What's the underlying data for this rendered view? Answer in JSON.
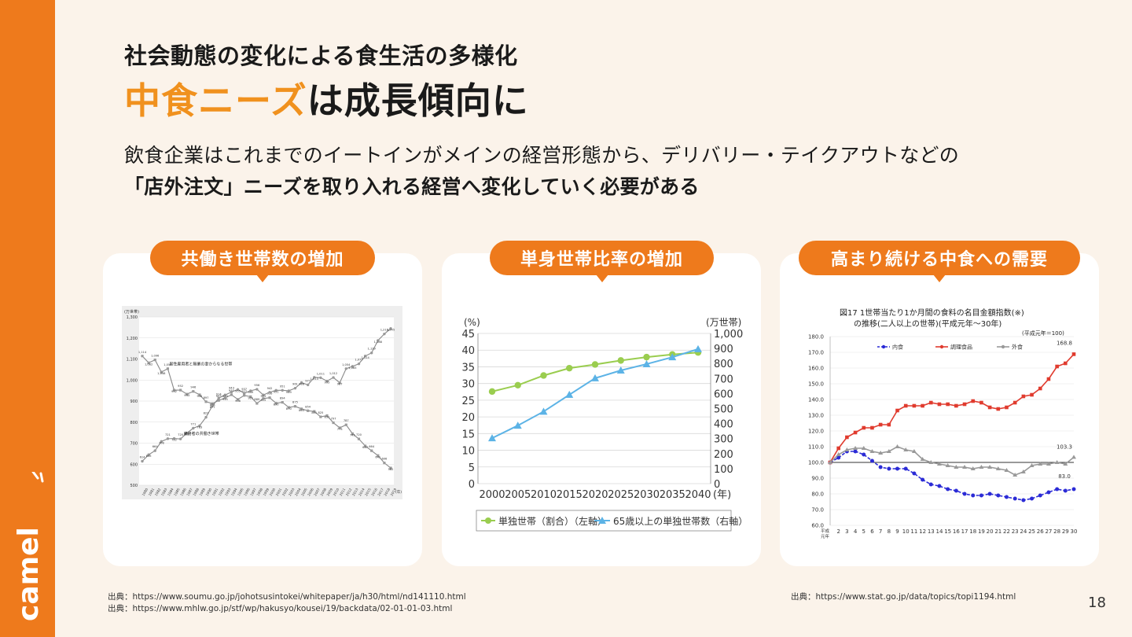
{
  "brand": {
    "name": "camel",
    "color": "#ee7a1c",
    "accent": "#f0911e"
  },
  "heading": "社会動態の変化による食生活の多様化",
  "title": {
    "accent": "中食ニーズ",
    "rest": "は成長傾向に"
  },
  "description": {
    "line1": "飲食企業はこれまでのイートインがメインの経営形態から、デリバリー・テイクアウトなどの",
    "line2": "「店外注文」ニーズを取り入れる経営へ変化していく必要がある"
  },
  "cards": [
    {
      "label": "共働き世帯数の増加"
    },
    {
      "label": "単身世帯比率の増加"
    },
    {
      "label": "高まり続ける中食への需要"
    }
  ],
  "sources": {
    "left1": "出典：https://www.soumu.go.jp/johotsusintokei/whitepaper/ja/h30/html/nd141110.html",
    "left2": "出典：https://www.mhlw.go.jp/stf/wp/hakusyo/kousei/19/backdata/02-01-01-03.html",
    "right": "出典：https://www.stat.go.jp/data/topics/topi1194.html"
  },
  "page_number": "18",
  "chart_data": [
    {
      "type": "line",
      "ylabel": "(万世帯)",
      "ylim": [
        500,
        1300
      ],
      "yticks": [
        "500",
        "600",
        "700",
        "800",
        "900",
        "1,000",
        "1,100",
        "1,200",
        "1,300"
      ],
      "x": [
        "1980",
        "1981",
        "1982",
        "1983",
        "1984",
        "1985",
        "1986",
        "1987",
        "1988",
        "1989",
        "1990",
        "1991",
        "1992",
        "1993",
        "1994",
        "1995",
        "1996",
        "1997",
        "1998",
        "1999",
        "2000",
        "2001",
        "2002",
        "2003",
        "2004",
        "2005",
        "2006",
        "2007",
        "2008",
        "2009",
        "2010",
        "2011",
        "2012",
        "2013",
        "2014",
        "2015",
        "2016",
        "2017",
        "2018",
        "2019"
      ],
      "x_unit": "(年)",
      "series": [
        {
          "name": "男性雇用者と無業の妻からなる世帯",
          "color": "#888888",
          "values": [
            1114,
            1082,
            1096,
            1038,
            1054,
            952,
            952,
            933,
            946,
            930,
            897,
            888,
            903,
            915,
            930,
            908,
            927,
            921,
            889,
            912,
            916,
            890,
            894,
            870,
            875,
            863,
            854,
            851,
            825,
            831,
            797,
            773,
            787,
            745,
            720,
            687,
            664,
            641,
            606,
            582
          ]
        },
        {
          "name": "雇用者の共働き世帯",
          "color": "#888888",
          "values": [
            614,
            645,
            664,
            708,
            721,
            722,
            720,
            748,
            771,
            783,
            823,
            877,
            914,
            929,
            943,
            955,
            937,
            949,
            956,
            929,
            942,
            951,
            951,
            949,
            961,
            988,
            977,
            1013,
            1011,
            995,
            1012,
            987,
            1054,
            1065,
            1077,
            1114,
            1129,
            1188,
            1219,
            1245
          ]
        }
      ]
    },
    {
      "type": "line",
      "ylabel_left": "(%)",
      "ylabel_right": "(万世帯)",
      "ylim_left": [
        0,
        45
      ],
      "ylim_right": [
        0,
        1000
      ],
      "yticks_left": [
        "0",
        "5",
        "10",
        "15",
        "20",
        "25",
        "30",
        "35",
        "40",
        "45"
      ],
      "yticks_right": [
        "0",
        "100",
        "200",
        "300",
        "400",
        "500",
        "600",
        "700",
        "800",
        "900",
        "1,000"
      ],
      "x": [
        "2000",
        "2005",
        "2010",
        "2015",
        "2020",
        "2025",
        "2030",
        "2035",
        "2040"
      ],
      "x_unit": "(年)",
      "series": [
        {
          "name": "単独世帯（割合）（左軸）",
          "color": "#9acd4f",
          "axis": "left",
          "values": [
            27.6,
            29.5,
            32.4,
            34.6,
            35.7,
            36.9,
            37.9,
            38.7,
            39.3
          ]
        },
        {
          "name": "65歳以上の単独世帯数（右軸）",
          "color": "#5cb3e6",
          "axis": "right",
          "values": [
            303,
            387,
            480,
            592,
            702,
            754,
            796,
            842,
            896
          ]
        }
      ]
    },
    {
      "type": "line",
      "title": "図17  1世帯当たり1か月間の食料の名目金額指数(※)の推移(二人以上の世帯)(平成元年〜30年)",
      "note": "(平成元年＝100)",
      "ylim": [
        60,
        180
      ],
      "yticks": [
        "60.0",
        "70.0",
        "80.0",
        "90.0",
        "100.0",
        "110.0",
        "120.0",
        "130.0",
        "140.0",
        "150.0",
        "160.0",
        "170.0",
        "180.0"
      ],
      "x": [
        "平成元年",
        "2",
        "3",
        "4",
        "5",
        "6",
        "7",
        "8",
        "9",
        "10",
        "11",
        "12",
        "13",
        "14",
        "15",
        "16",
        "17",
        "18",
        "19",
        "20",
        "21",
        "22",
        "23",
        "24",
        "25",
        "26",
        "27",
        "28",
        "29",
        "30"
      ],
      "series": [
        {
          "name": "内食",
          "color": "#2b2bd6",
          "values": [
            100,
            103,
            107,
            107,
            105,
            101,
            97,
            96,
            96,
            96,
            93,
            89,
            86,
            85,
            83,
            82,
            80,
            79,
            79,
            80,
            79,
            78,
            77,
            76,
            77,
            79,
            81,
            83,
            82,
            83.0
          ]
        },
        {
          "name": "調理食品",
          "color": "#e03b2e",
          "values": [
            100,
            109,
            116,
            119,
            122,
            122,
            124,
            124,
            133,
            136,
            136,
            136,
            138,
            137,
            137,
            136,
            137,
            139,
            138,
            135,
            134,
            135,
            138,
            142,
            143,
            147,
            153,
            161,
            163,
            168.8
          ]
        },
        {
          "name": "外食",
          "color": "#999999",
          "values": [
            100,
            105,
            108,
            109,
            109,
            107,
            106,
            107,
            110,
            108,
            107,
            102,
            100,
            99,
            98,
            97,
            97,
            96,
            97,
            97,
            96,
            95,
            92,
            94,
            98,
            99,
            99,
            100,
            99,
            103.3
          ]
        }
      ],
      "end_labels": [
        "168.8",
        "103.3",
        "83.0"
      ]
    }
  ]
}
